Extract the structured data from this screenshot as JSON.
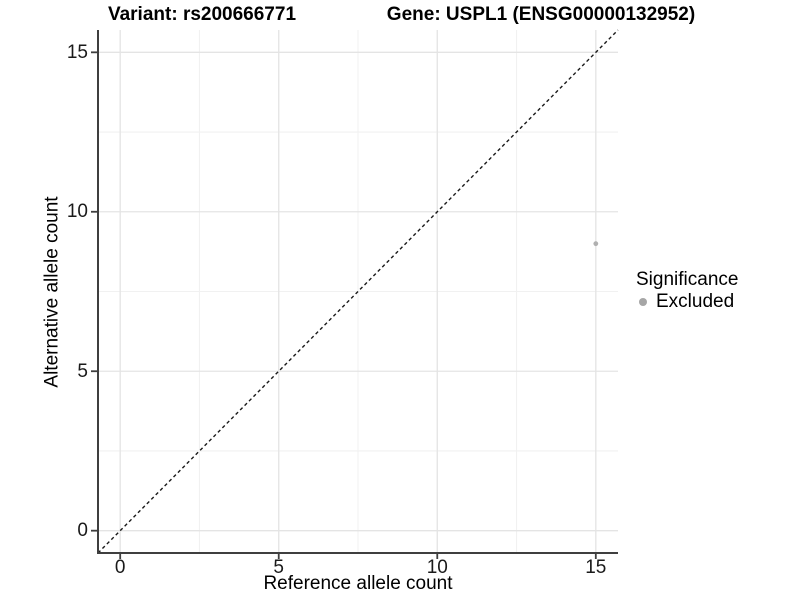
{
  "header": {
    "variant_title": "Variant: rs200666771",
    "gene_title": "Gene: USPL1 (ENSG00000132952)"
  },
  "legend": {
    "title": "Significance",
    "items": [
      {
        "label": "Excluded",
        "color": "#a6a6a6"
      }
    ]
  },
  "chart_data": {
    "type": "scatter",
    "title": "Variant: rs200666771 | Gene: USPL1 (ENSG00000132952)",
    "xlabel": "Reference allele count",
    "ylabel": "Alternative allele count",
    "xlim": [
      -0.7,
      15.7
    ],
    "ylim": [
      -0.7,
      15.7
    ],
    "x_ticks": [
      0,
      5,
      10,
      15
    ],
    "y_ticks": [
      0,
      5,
      10,
      15
    ],
    "x_minor_ticks": [
      2.5,
      7.5,
      12.5
    ],
    "y_minor_ticks": [
      2.5,
      7.5,
      12.5
    ],
    "grid": "major+minor",
    "points": [
      {
        "x": 15,
        "y": 9,
        "significance": "Excluded"
      }
    ],
    "point_color": "#b0b0b0",
    "point_radius_px": 2.4,
    "reference_line": {
      "slope": 1,
      "intercept": 0,
      "style": "dashed",
      "color": "#1a1a1a"
    },
    "legend": {
      "title": "Significance",
      "entries": [
        "Excluded"
      ],
      "position": "right"
    },
    "colors": {
      "grid_major": "#e4e4e4",
      "grid_minor": "#f1f1f1",
      "axis": "#3f3f3f",
      "text": "#000000"
    }
  }
}
